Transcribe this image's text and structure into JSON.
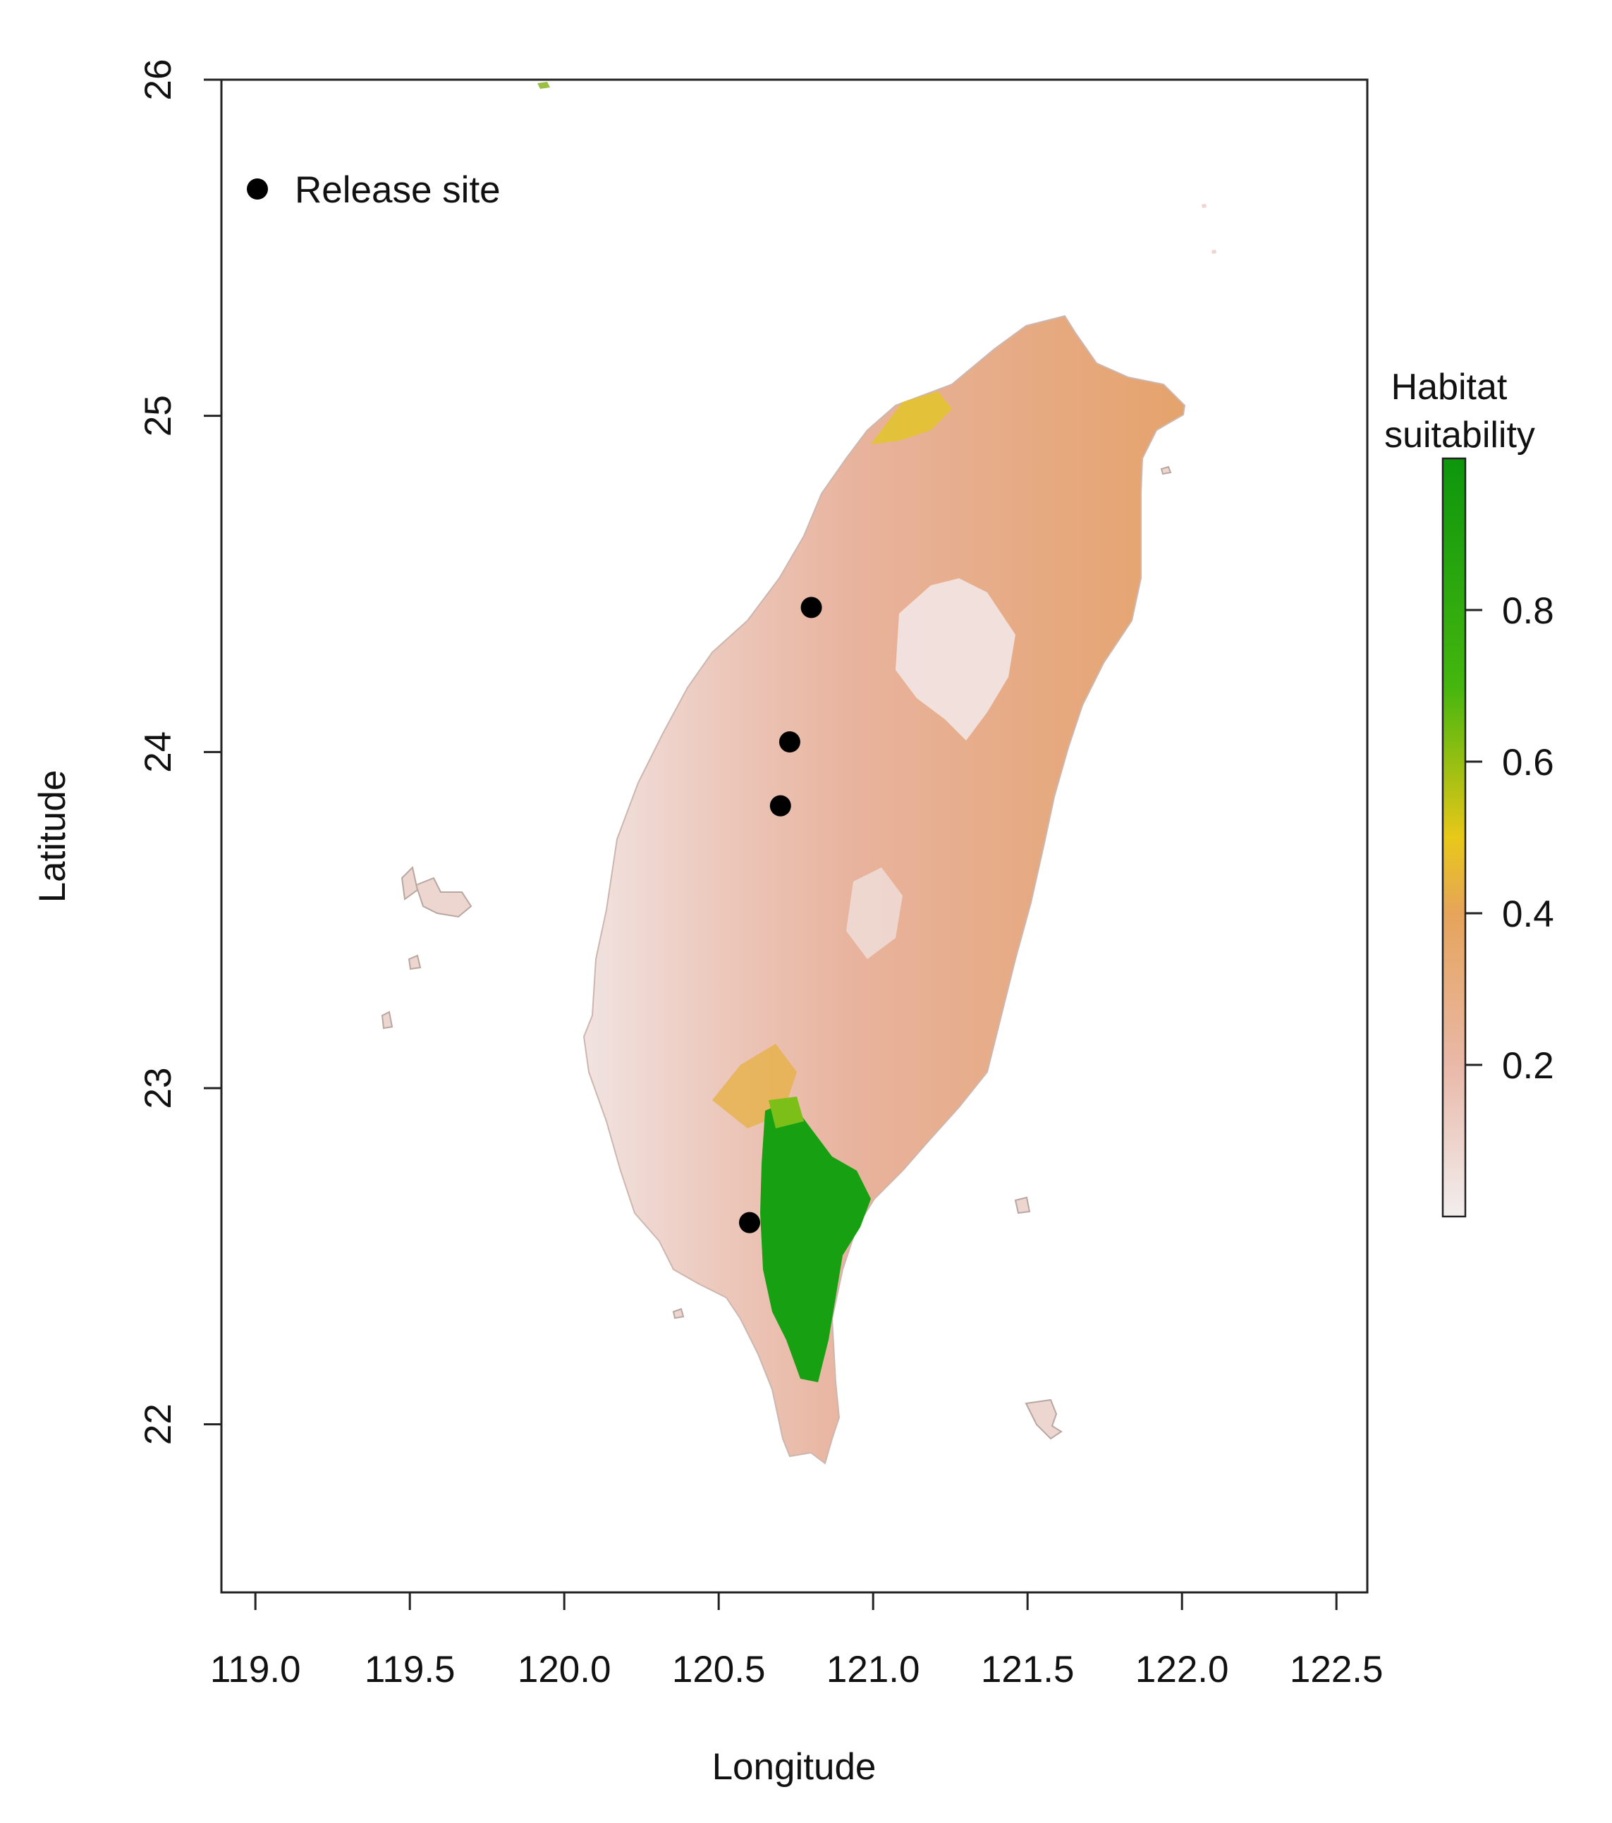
{
  "map": {
    "xlabel": "Longitude",
    "ylabel": "Latitude",
    "x_ticks": [
      "119.0",
      "119.5",
      "120.0",
      "120.5",
      "121.0",
      "121.5",
      "122.0",
      "122.5"
    ],
    "y_ticks": [
      "22",
      "23",
      "24",
      "25",
      "26"
    ],
    "xlim": [
      118.89,
      122.6
    ],
    "ylim": [
      21.5,
      26.0
    ]
  },
  "legend": {
    "label": "Release site"
  },
  "colorbar": {
    "title_line1": "Habitat",
    "title_line2": "suitability",
    "ticks": [
      "0.2",
      "0.4",
      "0.6",
      "0.8"
    ],
    "range": [
      0.0,
      1.0
    ],
    "colors": [
      "#f2eeee",
      "#e9b8a8",
      "#e6a45a",
      "#e8c818",
      "#44b60e",
      "#0d960d"
    ]
  },
  "chart_data": {
    "type": "scatter",
    "title": "",
    "xlabel": "Longitude",
    "ylabel": "Latitude",
    "xlim": [
      118.89,
      122.6
    ],
    "ylim": [
      21.5,
      26.0
    ],
    "series": [
      {
        "name": "Release site",
        "points": [
          {
            "x": 120.8,
            "y": 24.43
          },
          {
            "x": 120.73,
            "y": 24.03
          },
          {
            "x": 120.7,
            "y": 23.84
          },
          {
            "x": 120.6,
            "y": 22.6
          }
        ]
      }
    ],
    "background_raster": "Habitat suitability",
    "grid": false
  },
  "colors": {
    "point": "#000000",
    "axis": "#222222",
    "island_fill": "#edd6cf",
    "island_outline": "#b8a6a0"
  }
}
